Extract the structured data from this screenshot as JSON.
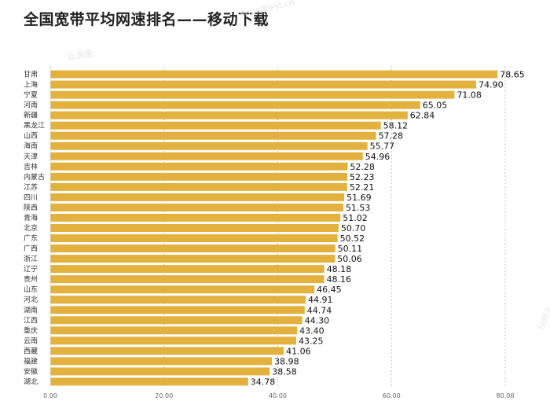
{
  "watermarks": [
    "speedtest.cn",
    "云测速",
    "test.c"
  ],
  "colors": {
    "bar": "#E3B13E",
    "grid": "#b3b3b3",
    "text": "#222222"
  },
  "chart_data": {
    "type": "bar",
    "orientation": "horizontal",
    "title": "全国宽带平均网速排名——移动下载",
    "xlabel": "",
    "ylabel": "",
    "xlim": [
      0,
      80
    ],
    "xticks": [
      "0.00",
      "20.00",
      "40.00",
      "60.00",
      "80.00"
    ],
    "grid": "vertical dotted",
    "categories": [
      "甘肃",
      "上海",
      "宁夏",
      "河南",
      "新疆",
      "黑龙江",
      "山西",
      "海南",
      "天津",
      "吉林",
      "内蒙古",
      "江苏",
      "四川",
      "陕西",
      "青海",
      "北京",
      "广东",
      "广西",
      "浙江",
      "辽宁",
      "贵州",
      "山东",
      "河北",
      "湖南",
      "江西",
      "重庆",
      "云南",
      "西藏",
      "福建",
      "安徽",
      "湖北"
    ],
    "values": [
      78.65,
      74.9,
      71.08,
      65.05,
      62.84,
      58.12,
      57.28,
      55.77,
      54.96,
      52.28,
      52.23,
      52.21,
      51.69,
      51.53,
      51.02,
      50.7,
      50.52,
      50.11,
      50.06,
      48.18,
      48.16,
      46.45,
      44.91,
      44.74,
      44.3,
      43.4,
      43.25,
      41.06,
      38.98,
      38.58,
      34.78
    ],
    "value_labels": [
      "78.65",
      "74.90",
      "71.08",
      "65.05",
      "62.84",
      "58.12",
      "57.28",
      "55.77",
      "54.96",
      "52.28",
      "52.23",
      "52.21",
      "51.69",
      "51.53",
      "51.02",
      "50.70",
      "50.52",
      "50.11",
      "50.06",
      "48.18",
      "48.16",
      "46.45",
      "44.91",
      "44.74",
      "44.30",
      "43.40",
      "43.25",
      "41.06",
      "38.98",
      "38.58",
      "34.78"
    ]
  }
}
